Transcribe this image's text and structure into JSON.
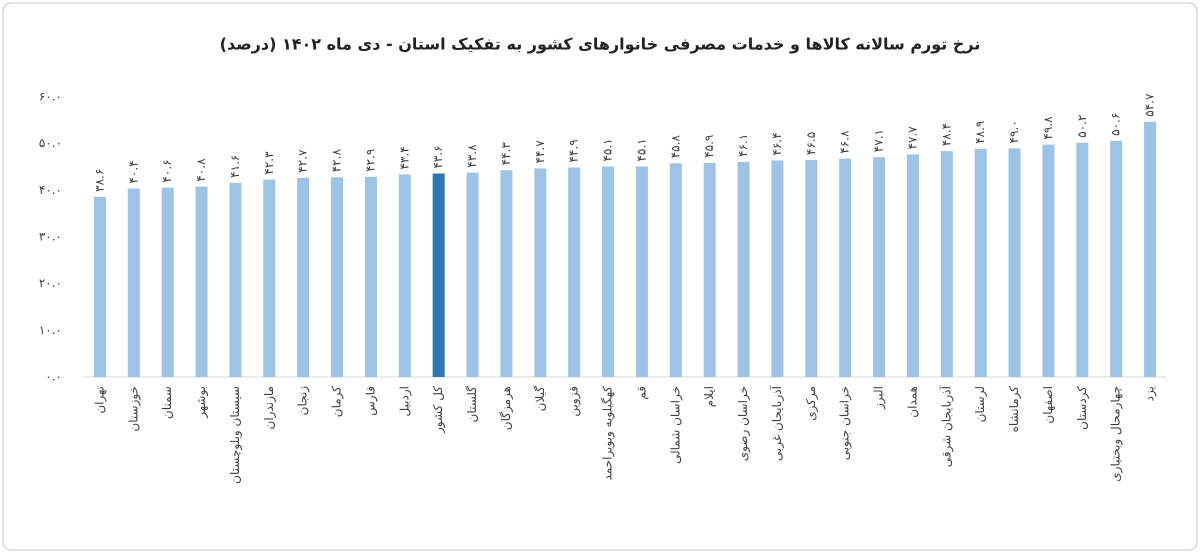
{
  "chart_data": {
    "type": "bar",
    "title": "نرخ تورم سالانه کالاها و خدمات مصرفی خانوارهای کشور به تفکیک استان - دی ماه ۱۴۰۲ (درصد)",
    "categories": [
      "تهران",
      "خوزستان",
      "سمنان",
      "بوشهر",
      "سیستان وبلوچستان",
      "مازندران",
      "زنجان",
      "کرمان",
      "فارس",
      "اردبیل",
      "کل کشور",
      "گلستان",
      "هرمزگان",
      "گیلان",
      "قزوین",
      "کهگیلویه وبویراحمد",
      "قم",
      "خراسان شمالی",
      "ایلام",
      "خراسان رضوی",
      "آذربایجان غربی",
      "مرکزی",
      "خراسان جنوبی",
      "البرز",
      "همدان",
      "آذربایجان شرقی",
      "لرستان",
      "کرمانشاه",
      "اصفهان",
      "کردستان",
      "چهارمحال وبختیاری",
      "یزد"
    ],
    "values": [
      38.6,
      40.4,
      40.6,
      40.8,
      41.6,
      42.3,
      42.7,
      42.8,
      42.9,
      43.4,
      43.6,
      43.8,
      44.3,
      44.7,
      44.9,
      45.1,
      45.1,
      45.8,
      45.9,
      46.1,
      46.4,
      46.5,
      46.8,
      47.1,
      47.7,
      48.4,
      48.9,
      49.0,
      49.8,
      50.2,
      50.6,
      54.7
    ],
    "value_labels": [
      "۳۸.۶",
      "۴۰.۴",
      "۴۰.۶",
      "۴۰.۸",
      "۴۱.۶",
      "۴۲.۳",
      "۴۲.۷",
      "۴۲.۸",
      "۴۲.۹",
      "۴۳.۴",
      "۴۳.۶",
      "۴۳.۸",
      "۴۴.۳",
      "۴۴.۷",
      "۴۴.۹",
      "۴۵.۱",
      "۴۵.۱",
      "۴۵.۸",
      "۴۵.۹",
      "۴۶.۱",
      "۴۶.۴",
      "۴۶.۵",
      "۴۶.۸",
      "۴۷.۱",
      "۴۷.۷",
      "۴۸.۴",
      "۴۸.۹",
      "۴۹.۰",
      "۴۹.۸",
      "۵۰.۲",
      "۵۰.۶",
      "۵۴.۷"
    ],
    "colors": [
      "#9dc3e6",
      "#9dc3e6",
      "#9dc3e6",
      "#9dc3e6",
      "#9dc3e6",
      "#9dc3e6",
      "#9dc3e6",
      "#9dc3e6",
      "#9dc3e6",
      "#9dc3e6",
      "#2e75b6",
      "#9dc3e6",
      "#9dc3e6",
      "#9dc3e6",
      "#9dc3e6",
      "#9dc3e6",
      "#9dc3e6",
      "#9dc3e6",
      "#9dc3e6",
      "#9dc3e6",
      "#9dc3e6",
      "#9dc3e6",
      "#9dc3e6",
      "#9dc3e6",
      "#9dc3e6",
      "#9dc3e6",
      "#9dc3e6",
      "#9dc3e6",
      "#9dc3e6",
      "#9dc3e6",
      "#9dc3e6",
      "#9dc3e6"
    ],
    "ylim": [
      0,
      60
    ],
    "yticks": [
      {
        "value": 0,
        "label": "۰.۰"
      },
      {
        "value": 10,
        "label": "۱۰.۰"
      },
      {
        "value": 20,
        "label": "۲۰.۰"
      },
      {
        "value": 30,
        "label": "۳۰.۰"
      },
      {
        "value": 40,
        "label": "۴۰.۰"
      },
      {
        "value": 50,
        "label": "۵۰.۰"
      },
      {
        "value": 60,
        "label": "۶۰.۰"
      }
    ],
    "grid": false
  }
}
